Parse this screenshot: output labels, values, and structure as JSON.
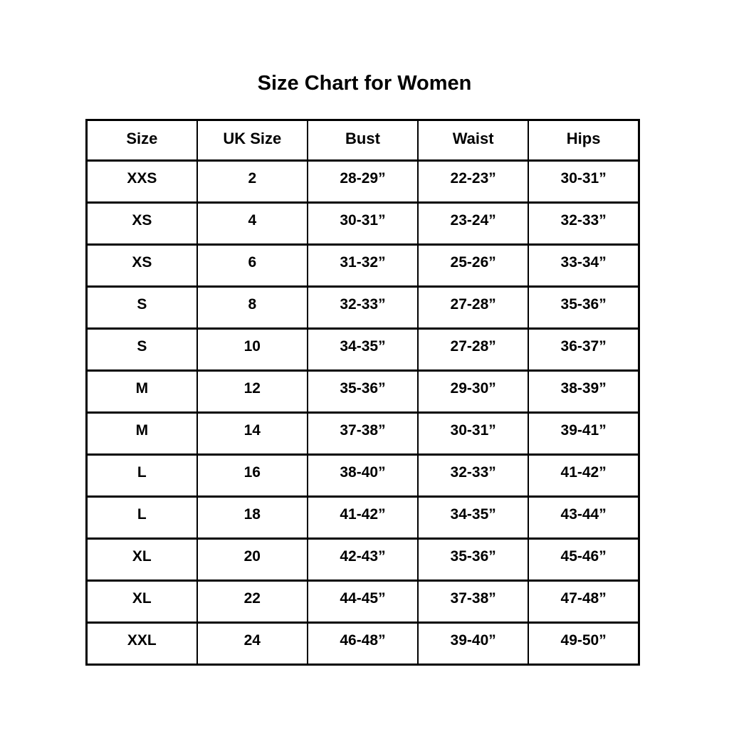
{
  "page": {
    "title": "Size Chart for Women",
    "colors": {
      "background": "#ffffff",
      "border": "#000000",
      "text": "#000000"
    }
  },
  "table": {
    "headers": {
      "size": "Size",
      "uk": "UK Size",
      "bust": "Bust",
      "waist": "Waist",
      "hips": "Hips"
    },
    "rows": [
      {
        "size": "XXS",
        "uk": "2",
        "bust": "28-29”",
        "waist": "22-23”",
        "hips": "30-31”"
      },
      {
        "size": "XS",
        "uk": "4",
        "bust": "30-31”",
        "waist": "23-24”",
        "hips": "32-33”"
      },
      {
        "size": "XS",
        "uk": "6",
        "bust": "31-32”",
        "waist": "25-26”",
        "hips": "33-34”"
      },
      {
        "size": "S",
        "uk": "8",
        "bust": "32-33”",
        "waist": "27-28”",
        "hips": "35-36”"
      },
      {
        "size": "S",
        "uk": "10",
        "bust": "34-35”",
        "waist": "27-28”",
        "hips": "36-37”"
      },
      {
        "size": "M",
        "uk": "12",
        "bust": "35-36”",
        "waist": "29-30”",
        "hips": "38-39”"
      },
      {
        "size": "M",
        "uk": "14",
        "bust": "37-38”",
        "waist": "30-31”",
        "hips": "39-41”"
      },
      {
        "size": "L",
        "uk": "16",
        "bust": "38-40”",
        "waist": "32-33”",
        "hips": "41-42”"
      },
      {
        "size": "L",
        "uk": "18",
        "bust": "41-42”",
        "waist": "34-35”",
        "hips": "43-44”"
      },
      {
        "size": "XL",
        "uk": "20",
        "bust": "42-43”",
        "waist": "35-36”",
        "hips": "45-46”"
      },
      {
        "size": "XL",
        "uk": "22",
        "bust": "44-45”",
        "waist": "37-38”",
        "hips": "47-48”"
      },
      {
        "size": "XXL",
        "uk": "24",
        "bust": "46-48”",
        "waist": "39-40”",
        "hips": "49-50”"
      }
    ]
  }
}
